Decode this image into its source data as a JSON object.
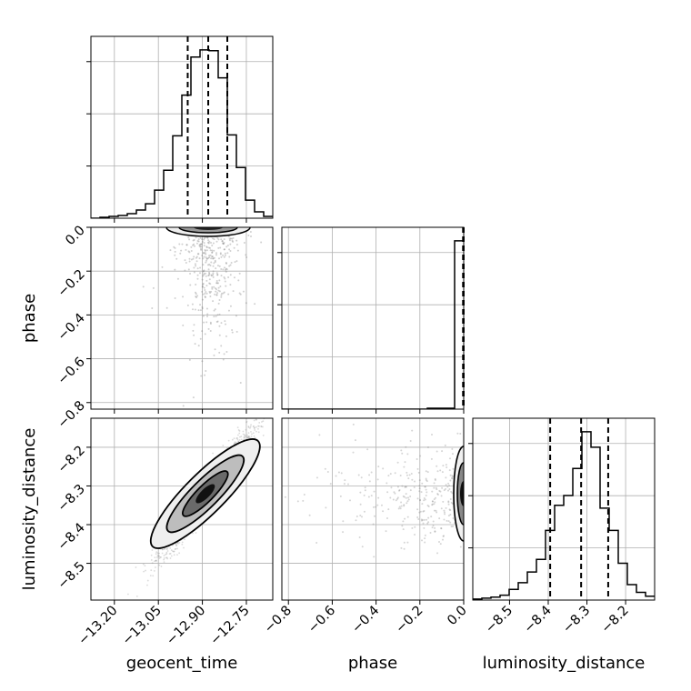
{
  "chart_data": {
    "type": "corner",
    "parameters": [
      "geocent_time",
      "phase",
      "luminosity_distance"
    ],
    "axes": {
      "geocent_time": {
        "label": "geocent_time",
        "range": [
          -13.28,
          -12.66
        ],
        "ticks": [
          -13.2,
          -13.05,
          -12.9,
          -12.75
        ],
        "tick_labels": [
          "−13.20",
          "−13.05",
          "−12.90",
          "−12.75"
        ],
        "quantiles": [
          -12.95,
          -12.88,
          -12.815
        ]
      },
      "phase": {
        "label": "phase",
        "range": [
          -0.83,
          0.0
        ],
        "ticks": [
          -0.8,
          -0.6,
          -0.4,
          -0.2,
          0.0
        ],
        "tick_labels": [
          "−0.8",
          "−0.6",
          "−0.4",
          "−0.2",
          "0.0"
        ],
        "quantiles": [
          -0.003,
          -0.001,
          0.0
        ]
      },
      "luminosity_distance": {
        "label": "luminosity_distance",
        "range": [
          -8.595,
          -8.125
        ],
        "ticks": [
          -8.5,
          -8.4,
          -8.3,
          -8.2
        ],
        "tick_labels": [
          "−8.5",
          "−8.4",
          "−8.3",
          "−8.2"
        ],
        "quantiles": [
          -8.395,
          -8.315,
          -8.245
        ]
      }
    },
    "histograms": {
      "geocent_time": {
        "edges_range": [
          -13.28,
          -12.66
        ],
        "counts": [
          0,
          1,
          2,
          3,
          5,
          9,
          16,
          31,
          53,
          91,
          136,
          178,
          186,
          185,
          155,
          92,
          56,
          20,
          7,
          2
        ]
      },
      "phase": {
        "edges_range": [
          -0.83,
          0.0
        ],
        "counts": [
          0,
          0,
          0,
          0,
          0,
          0,
          0,
          0,
          0,
          0,
          0,
          0,
          0,
          0,
          0,
          0,
          1,
          1,
          1,
          176
        ]
      },
      "luminosity_distance": {
        "edges_range": [
          -8.595,
          -8.125
        ],
        "counts": [
          1,
          2,
          3,
          5,
          11,
          18,
          29,
          42,
          72,
          98,
          108,
          136,
          174,
          158,
          95,
          72,
          38,
          16,
          8,
          4
        ]
      }
    },
    "contour_levels": [
      "2D density contours with grey filled regions (corner style)"
    ],
    "grid": true
  }
}
